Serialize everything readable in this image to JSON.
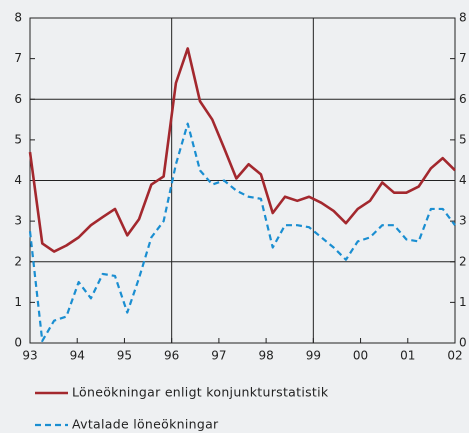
{
  "chart_data": {
    "type": "line",
    "x": [
      1993,
      1993.26,
      1993.51,
      1993.77,
      1994.03,
      1994.29,
      1994.54,
      1994.8,
      1995.06,
      1995.31,
      1995.57,
      1995.83,
      1996.09,
      1996.34,
      1996.6,
      1996.86,
      1997.11,
      1997.37,
      1997.63,
      1997.89,
      1998.14,
      1998.4,
      1998.66,
      1998.91,
      1999.17,
      1999.43,
      1999.69,
      1999.94,
      2000.2,
      2000.46,
      2000.71,
      2000.97,
      2001.23,
      2001.49,
      2001.74,
      2002
    ],
    "series": [
      {
        "name": "Löneökningar enligt konjunkturstatistik",
        "color": "#a3282e",
        "dash": false,
        "values": [
          4.7,
          2.45,
          2.25,
          2.4,
          2.6,
          2.9,
          3.1,
          3.3,
          2.65,
          3.05,
          3.9,
          4.1,
          6.4,
          7.25,
          5.95,
          5.5,
          4.8,
          4.05,
          4.4,
          4.15,
          3.2,
          3.6,
          3.5,
          3.6,
          3.45,
          3.25,
          2.95,
          3.3,
          3.5,
          3.95,
          3.7,
          3.7,
          3.85,
          4.3,
          4.55,
          4.25
        ]
      },
      {
        "name": "Avtalade löneökningar",
        "color": "#1a8ed1",
        "dash": true,
        "values": [
          2.75,
          0.05,
          0.55,
          0.65,
          1.5,
          1.1,
          1.7,
          1.65,
          0.75,
          1.6,
          2.6,
          3.0,
          4.4,
          5.4,
          4.25,
          3.9,
          4.0,
          3.75,
          3.6,
          3.55,
          2.35,
          2.9,
          2.9,
          2.85,
          2.6,
          2.35,
          2.05,
          2.5,
          2.6,
          2.9,
          2.9,
          2.55,
          2.5,
          3.3,
          3.3,
          2.9
        ]
      }
    ],
    "xlim": [
      1993,
      2002
    ],
    "xticks": [
      {
        "value": 1993,
        "label": "93"
      },
      {
        "value": 1994,
        "label": "94"
      },
      {
        "value": 1995,
        "label": "95"
      },
      {
        "value": 1996,
        "label": "96"
      },
      {
        "value": 1997,
        "label": "97"
      },
      {
        "value": 1998,
        "label": "98"
      },
      {
        "value": 1999,
        "label": "99"
      },
      {
        "value": 2000,
        "label": "00"
      },
      {
        "value": 2001,
        "label": "01"
      },
      {
        "value": 2002,
        "label": "02"
      }
    ],
    "ylim": [
      0,
      8
    ],
    "yticks": [
      0,
      1,
      2,
      3,
      4,
      5,
      6,
      7,
      8
    ],
    "y2lim": [
      0,
      8
    ],
    "y2ticks": [
      0,
      1,
      2,
      3,
      4,
      5,
      6,
      7,
      8
    ],
    "ygrid": [
      2,
      4,
      6
    ],
    "xgrid": [
      1996,
      1999
    ]
  }
}
